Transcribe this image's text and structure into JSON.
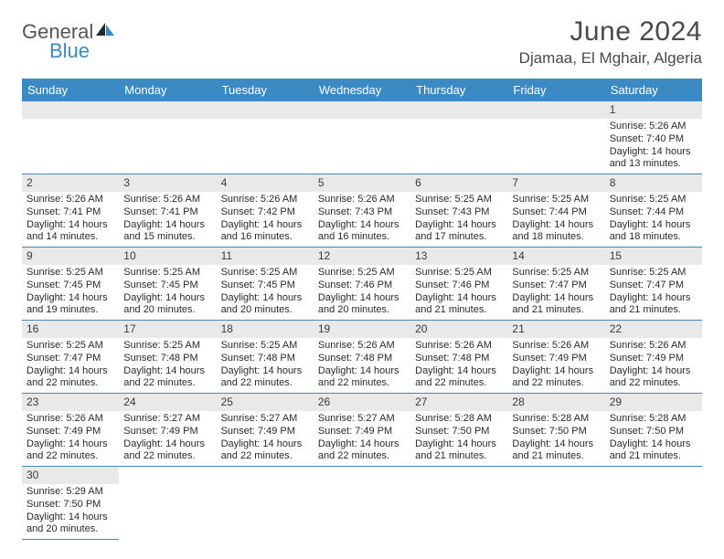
{
  "brand": {
    "part1": "General",
    "part2": "Blue"
  },
  "title": "June 2024",
  "location": "Djamaa, El Mghair, Algeria",
  "colors": {
    "header_bg": "#3b8ac4",
    "daynum_bg": "#e9e9e9",
    "row_border": "#3b8ac4",
    "text": "#2a2a2a"
  },
  "weekdays": [
    "Sunday",
    "Monday",
    "Tuesday",
    "Wednesday",
    "Thursday",
    "Friday",
    "Saturday"
  ],
  "first_weekday_index": 6,
  "days": [
    {
      "n": 1,
      "sr": "5:26 AM",
      "ss": "7:40 PM",
      "dl": "14 hours and 13 minutes."
    },
    {
      "n": 2,
      "sr": "5:26 AM",
      "ss": "7:41 PM",
      "dl": "14 hours and 14 minutes."
    },
    {
      "n": 3,
      "sr": "5:26 AM",
      "ss": "7:41 PM",
      "dl": "14 hours and 15 minutes."
    },
    {
      "n": 4,
      "sr": "5:26 AM",
      "ss": "7:42 PM",
      "dl": "14 hours and 16 minutes."
    },
    {
      "n": 5,
      "sr": "5:26 AM",
      "ss": "7:43 PM",
      "dl": "14 hours and 16 minutes."
    },
    {
      "n": 6,
      "sr": "5:25 AM",
      "ss": "7:43 PM",
      "dl": "14 hours and 17 minutes."
    },
    {
      "n": 7,
      "sr": "5:25 AM",
      "ss": "7:44 PM",
      "dl": "14 hours and 18 minutes."
    },
    {
      "n": 8,
      "sr": "5:25 AM",
      "ss": "7:44 PM",
      "dl": "14 hours and 18 minutes."
    },
    {
      "n": 9,
      "sr": "5:25 AM",
      "ss": "7:45 PM",
      "dl": "14 hours and 19 minutes."
    },
    {
      "n": 10,
      "sr": "5:25 AM",
      "ss": "7:45 PM",
      "dl": "14 hours and 20 minutes."
    },
    {
      "n": 11,
      "sr": "5:25 AM",
      "ss": "7:45 PM",
      "dl": "14 hours and 20 minutes."
    },
    {
      "n": 12,
      "sr": "5:25 AM",
      "ss": "7:46 PM",
      "dl": "14 hours and 20 minutes."
    },
    {
      "n": 13,
      "sr": "5:25 AM",
      "ss": "7:46 PM",
      "dl": "14 hours and 21 minutes."
    },
    {
      "n": 14,
      "sr": "5:25 AM",
      "ss": "7:47 PM",
      "dl": "14 hours and 21 minutes."
    },
    {
      "n": 15,
      "sr": "5:25 AM",
      "ss": "7:47 PM",
      "dl": "14 hours and 21 minutes."
    },
    {
      "n": 16,
      "sr": "5:25 AM",
      "ss": "7:47 PM",
      "dl": "14 hours and 22 minutes."
    },
    {
      "n": 17,
      "sr": "5:25 AM",
      "ss": "7:48 PM",
      "dl": "14 hours and 22 minutes."
    },
    {
      "n": 18,
      "sr": "5:25 AM",
      "ss": "7:48 PM",
      "dl": "14 hours and 22 minutes."
    },
    {
      "n": 19,
      "sr": "5:26 AM",
      "ss": "7:48 PM",
      "dl": "14 hours and 22 minutes."
    },
    {
      "n": 20,
      "sr": "5:26 AM",
      "ss": "7:48 PM",
      "dl": "14 hours and 22 minutes."
    },
    {
      "n": 21,
      "sr": "5:26 AM",
      "ss": "7:49 PM",
      "dl": "14 hours and 22 minutes."
    },
    {
      "n": 22,
      "sr": "5:26 AM",
      "ss": "7:49 PM",
      "dl": "14 hours and 22 minutes."
    },
    {
      "n": 23,
      "sr": "5:26 AM",
      "ss": "7:49 PM",
      "dl": "14 hours and 22 minutes."
    },
    {
      "n": 24,
      "sr": "5:27 AM",
      "ss": "7:49 PM",
      "dl": "14 hours and 22 minutes."
    },
    {
      "n": 25,
      "sr": "5:27 AM",
      "ss": "7:49 PM",
      "dl": "14 hours and 22 minutes."
    },
    {
      "n": 26,
      "sr": "5:27 AM",
      "ss": "7:49 PM",
      "dl": "14 hours and 22 minutes."
    },
    {
      "n": 27,
      "sr": "5:28 AM",
      "ss": "7:50 PM",
      "dl": "14 hours and 21 minutes."
    },
    {
      "n": 28,
      "sr": "5:28 AM",
      "ss": "7:50 PM",
      "dl": "14 hours and 21 minutes."
    },
    {
      "n": 29,
      "sr": "5:28 AM",
      "ss": "7:50 PM",
      "dl": "14 hours and 21 minutes."
    },
    {
      "n": 30,
      "sr": "5:29 AM",
      "ss": "7:50 PM",
      "dl": "14 hours and 20 minutes."
    }
  ],
  "labels": {
    "sunrise": "Sunrise:",
    "sunset": "Sunset:",
    "daylight": "Daylight:"
  }
}
